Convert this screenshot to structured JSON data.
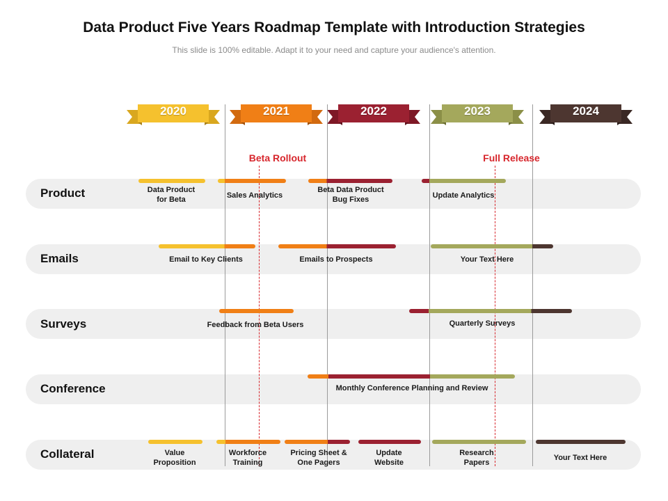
{
  "header": {
    "title": "Data Product Five Years Roadmap Template with Introduction Strategies",
    "subtitle": "This slide is 100% editable. Adapt it to your need and capture your audience's attention."
  },
  "colors": {
    "y2020": "#f5c12e",
    "y2021": "#f07f16",
    "y2022": "#9b2131",
    "y2023": "#a4a85c",
    "y2024": "#4d3630",
    "milestone": "#d7262c"
  },
  "years": [
    {
      "label": "2020",
      "color": "#f5c12e"
    },
    {
      "label": "2021",
      "color": "#f07f16"
    },
    {
      "label": "2022",
      "color": "#9b2131"
    },
    {
      "label": "2023",
      "color": "#a4a85c"
    },
    {
      "label": "2024",
      "color": "#4d3630"
    }
  ],
  "milestones": {
    "beta": "Beta Rollout",
    "full": "Full Release"
  },
  "lanes": {
    "product": {
      "label": "Product",
      "tasks": [
        "Data Product\nfor Beta",
        "Sales Analytics",
        "Beta Data Product\nBug Fixes",
        "Update Analytics"
      ]
    },
    "emails": {
      "label": "Emails",
      "tasks": [
        "Email to Key Clients",
        "Emails to Prospects",
        "Your Text Here"
      ]
    },
    "surveys": {
      "label": "Surveys",
      "tasks": [
        "Feedback from Beta Users",
        "Quarterly Surveys"
      ]
    },
    "conference": {
      "label": "Conference",
      "tasks": [
        "Monthly Conference Planning and Review"
      ]
    },
    "collateral": {
      "label": "Collateral",
      "tasks": [
        "Value\nProposition",
        "Workforce\nTraining",
        "Pricing Sheet &\nOne Pagers",
        "Update\nWebsite",
        "Research\nPapers",
        "Your Text Here"
      ]
    }
  }
}
